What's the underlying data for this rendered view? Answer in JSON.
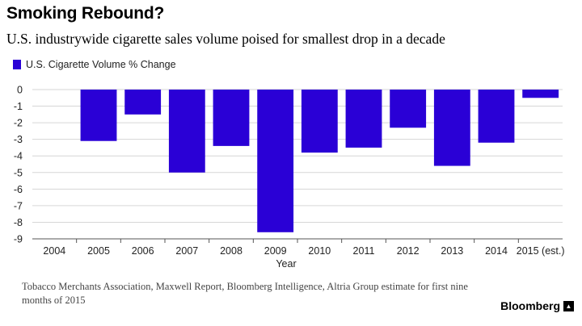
{
  "header": {
    "title": "Smoking Rebound?",
    "subtitle": "U.S. industrywide cigarette sales volume poised for smallest drop in a decade"
  },
  "colors": {
    "bar": "#2a00d6",
    "grid": "#d6d6d6",
    "axis": "#555555"
  },
  "chart_data": {
    "type": "bar",
    "categories": [
      "2004",
      "2005",
      "2006",
      "2007",
      "2008",
      "2009",
      "2010",
      "2011",
      "2012",
      "2013",
      "2014",
      "2015 (est.)"
    ],
    "series": [
      {
        "name": "U.S. Cigarette Volume % Change",
        "values": [
          null,
          -3.1,
          -1.5,
          -5.0,
          -3.4,
          -8.6,
          -3.8,
          -3.5,
          -2.3,
          -4.6,
          -3.2,
          -0.5
        ]
      }
    ],
    "xlabel": "Year",
    "ylabel": "",
    "ylim": [
      -9,
      0
    ],
    "yticks": [
      0,
      -1,
      -2,
      -3,
      -4,
      -5,
      -6,
      -7,
      -8,
      -9
    ],
    "grid": true,
    "legend_position": "top-left"
  },
  "footer": {
    "source": "Tobacco Merchants Association, Maxwell Report, Bloomberg Intelligence, Altria Group estimate for first nine months of 2015",
    "brand": "Bloomberg",
    "brand_icon": "bloomberg-mark-icon"
  }
}
